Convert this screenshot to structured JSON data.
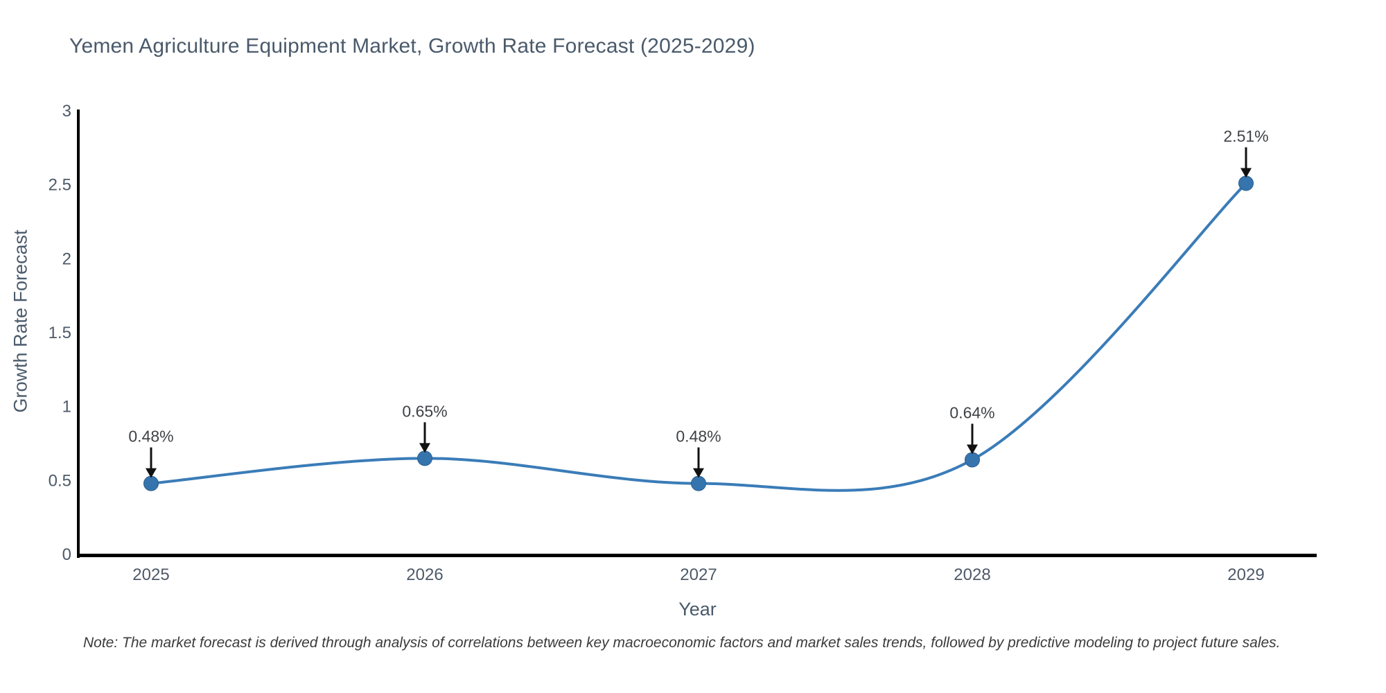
{
  "chart_data": {
    "type": "line",
    "title": "Yemen Agriculture Equipment Market, Growth Rate Forecast (2025-2029)",
    "xlabel": "Year",
    "ylabel": "Growth Rate Forecast",
    "categories": [
      "2025",
      "2026",
      "2027",
      "2028",
      "2029"
    ],
    "series": [
      {
        "name": "Growth Rate Forecast",
        "values": [
          0.48,
          0.65,
          0.48,
          0.64,
          2.51
        ]
      }
    ],
    "point_labels": [
      "0.48%",
      "0.65%",
      "0.48%",
      "0.64%",
      "2.51%"
    ],
    "yticks": [
      "0",
      "0.5",
      "1",
      "1.5",
      "2",
      "2.5",
      "3"
    ],
    "ytick_values": [
      0,
      0.5,
      1,
      1.5,
      2,
      2.5,
      3
    ],
    "ylim": [
      0,
      3
    ],
    "line_shape": "spline",
    "grid": false,
    "legend_position": "none",
    "colors": {
      "line": "#3a7cb8",
      "marker_fill": "#3674ae",
      "marker_edge": "#2a5d8c",
      "arrow": "#111111",
      "annotation_text": "#3f4246",
      "axis_line": "#000000",
      "tick_text": "#4e5a68",
      "title_text": "#4a5a6b",
      "background": "#ffffff"
    }
  },
  "note": {
    "text": "Note: The market forecast is derived through analysis of correlations between key macroeconomic factors and market sales trends, followed by predictive modeling to project future sales."
  }
}
